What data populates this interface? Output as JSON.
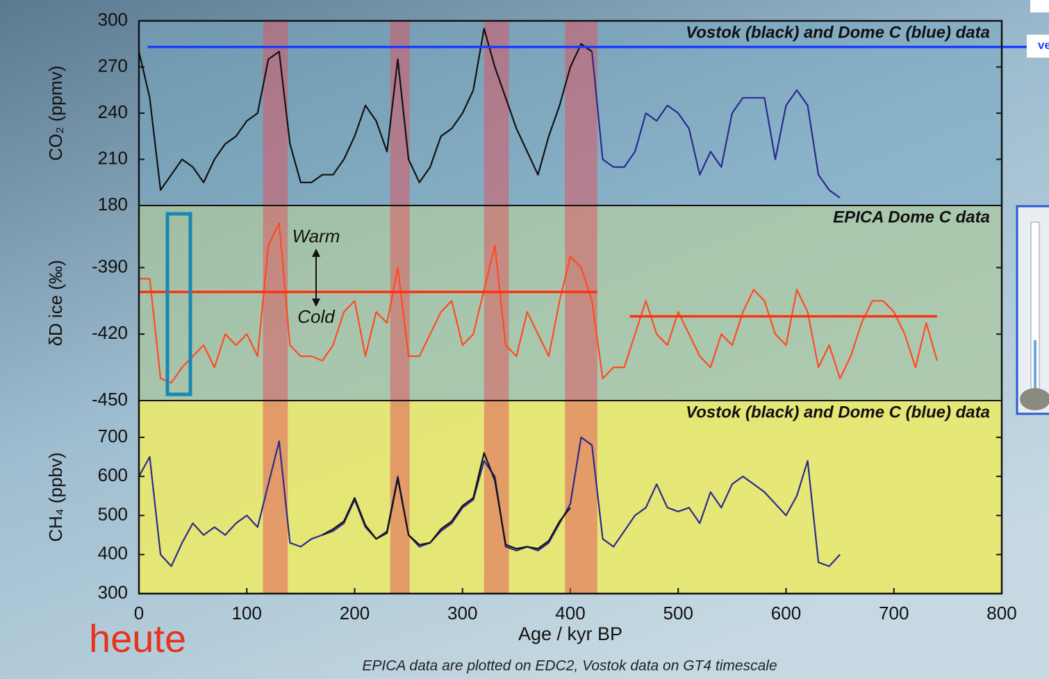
{
  "chart_data": [
    {
      "type": "line",
      "title": "Vostok (black) and Dome C (blue) data",
      "ylabel": "CO₂ (ppmv)",
      "xlim": [
        0,
        800
      ],
      "ylim": [
        180,
        300
      ],
      "yticks": [
        180,
        210,
        240,
        270,
        300
      ],
      "x": [
        0,
        10,
        20,
        30,
        40,
        50,
        60,
        70,
        80,
        90,
        100,
        110,
        120,
        130,
        140,
        150,
        160,
        170,
        180,
        190,
        200,
        210,
        220,
        230,
        240,
        250,
        260,
        270,
        280,
        290,
        300,
        310,
        320,
        330,
        340,
        350,
        360,
        370,
        380,
        390,
        400,
        410,
        420,
        430,
        440,
        450,
        460,
        470,
        480,
        490,
        500,
        510,
        520,
        530,
        540,
        550,
        560,
        570,
        580,
        590,
        600,
        610,
        620,
        630,
        640,
        650
      ],
      "series": [
        {
          "name": "Vostok",
          "color": "#111111",
          "values": [
            280,
            250,
            190,
            200,
            210,
            205,
            195,
            210,
            220,
            225,
            235,
            240,
            275,
            280,
            220,
            195,
            195,
            200,
            200,
            210,
            225,
            245,
            235,
            215,
            275,
            210,
            195,
            205,
            225,
            230,
            240,
            255,
            295,
            270,
            250,
            230,
            215,
            200,
            225,
            245,
            270,
            285,
            280,
            null,
            null,
            null,
            null,
            null,
            null,
            null,
            null,
            null,
            null,
            null,
            null,
            null,
            null,
            null,
            null,
            null,
            null,
            null,
            null,
            null,
            null,
            null
          ]
        },
        {
          "name": "Dome C",
          "color": "#2c2a8c",
          "values": [
            null,
            null,
            null,
            null,
            null,
            null,
            null,
            null,
            null,
            null,
            null,
            null,
            null,
            null,
            null,
            null,
            null,
            null,
            null,
            null,
            null,
            null,
            null,
            null,
            null,
            null,
            null,
            null,
            null,
            null,
            null,
            null,
            null,
            null,
            null,
            null,
            null,
            null,
            null,
            null,
            null,
            null,
            280,
            210,
            205,
            205,
            215,
            240,
            235,
            245,
            240,
            230,
            200,
            215,
            205,
            240,
            250,
            250,
            250,
            210,
            245,
            255,
            245,
            200,
            190,
            185
          ]
        }
      ],
      "shaded_ranges": [
        [
          115,
          138
        ],
        [
          233,
          251
        ],
        [
          320,
          343
        ],
        [
          395,
          425
        ]
      ],
      "shade_color": "rgba(225,80,90,0.5)",
      "reference_lines": [
        {
          "value": 283,
          "x": [
            8,
            823
          ],
          "color": "#1a3cff"
        }
      ]
    },
    {
      "type": "line",
      "title": "EPICA Dome C data",
      "ylabel": "δD ice (‰)",
      "xlim": [
        0,
        800
      ],
      "ylim": [
        -450,
        -362
      ],
      "yticks": [
        -450,
        -420,
        -390
      ],
      "annotations": [
        "Warm",
        "Cold"
      ],
      "x": [
        0,
        10,
        20,
        30,
        40,
        50,
        60,
        70,
        80,
        90,
        100,
        110,
        120,
        130,
        140,
        150,
        160,
        170,
        180,
        190,
        200,
        210,
        220,
        230,
        240,
        250,
        260,
        270,
        280,
        290,
        300,
        310,
        320,
        330,
        340,
        350,
        360,
        370,
        380,
        390,
        400,
        410,
        420,
        430,
        440,
        450,
        460,
        470,
        480,
        490,
        500,
        510,
        520,
        530,
        540,
        550,
        560,
        570,
        580,
        590,
        600,
        610,
        620,
        630,
        640,
        650,
        660,
        670,
        680,
        690,
        700,
        710,
        720,
        730,
        740
      ],
      "series": [
        {
          "name": "EPICA Dome C",
          "color": "#ff4a22",
          "values": [
            -395,
            -395,
            -440,
            -442,
            -435,
            -430,
            -425,
            -435,
            -420,
            -425,
            -420,
            -430,
            -380,
            -370,
            -425,
            -430,
            -430,
            -432,
            -425,
            -410,
            -405,
            -430,
            -410,
            -415,
            -390,
            -430,
            -430,
            -420,
            -410,
            -405,
            -425,
            -420,
            -400,
            -380,
            -425,
            -430,
            -410,
            -420,
            -430,
            -405,
            -385,
            -390,
            -405,
            -440,
            -435,
            -435,
            -420,
            -405,
            -420,
            -425,
            -410,
            -420,
            -430,
            -435,
            -420,
            -425,
            -410,
            -400,
            -405,
            -420,
            -425,
            -400,
            -410,
            -435,
            -425,
            -440,
            -430,
            -415,
            -405,
            -405,
            -410,
            -420,
            -435,
            -415,
            -432
          ]
        }
      ],
      "reference_lines": [
        {
          "value": -401,
          "x": [
            0,
            425
          ],
          "color": "#ff3010"
        },
        {
          "value": -412,
          "x": [
            455,
            740
          ],
          "color": "#ff3010"
        }
      ]
    },
    {
      "type": "line",
      "title": "Vostok (black) and Dome C (blue) data",
      "ylabel": "CH₄ (ppbv)",
      "xlabel": "Age / kyr BP",
      "xlim": [
        0,
        800
      ],
      "xticks": [
        0,
        100,
        200,
        300,
        400,
        500,
        600,
        700,
        800
      ],
      "ylim": [
        300,
        794
      ],
      "yticks": [
        300,
        400,
        500,
        600,
        700
      ],
      "x": [
        0,
        10,
        20,
        30,
        40,
        50,
        60,
        70,
        80,
        90,
        100,
        110,
        120,
        130,
        140,
        150,
        160,
        170,
        180,
        190,
        200,
        210,
        220,
        230,
        240,
        250,
        260,
        270,
        280,
        290,
        300,
        310,
        320,
        330,
        340,
        350,
        360,
        370,
        380,
        390,
        400,
        410,
        420,
        430,
        440,
        450,
        460,
        470,
        480,
        490,
        500,
        510,
        520,
        530,
        540,
        550,
        560,
        570,
        580,
        590,
        600,
        610,
        620,
        630,
        640,
        650
      ],
      "series": [
        {
          "name": "Dome C",
          "color": "#2c2a8c",
          "values": [
            600,
            650,
            400,
            370,
            430,
            480,
            450,
            470,
            450,
            480,
            500,
            470,
            580,
            690,
            430,
            420,
            440,
            450,
            460,
            480,
            540,
            470,
            440,
            460,
            600,
            450,
            420,
            430,
            460,
            480,
            520,
            540,
            640,
            600,
            420,
            410,
            420,
            410,
            430,
            480,
            530,
            700,
            680,
            440,
            420,
            460,
            500,
            520,
            580,
            520,
            510,
            520,
            480,
            560,
            520,
            580,
            600,
            580,
            560,
            530,
            500,
            550,
            640,
            380,
            370,
            400
          ]
        },
        {
          "name": "Vostok",
          "color": "#111111",
          "values": [
            null,
            null,
            null,
            null,
            null,
            null,
            null,
            null,
            null,
            null,
            null,
            null,
            null,
            null,
            null,
            null,
            null,
            450,
            465,
            485,
            545,
            475,
            440,
            455,
            595,
            450,
            425,
            430,
            465,
            485,
            525,
            545,
            660,
            590,
            425,
            415,
            420,
            415,
            435,
            485,
            520,
            null,
            null,
            null,
            null,
            null,
            null,
            null,
            null,
            null,
            null,
            null,
            null,
            null,
            null,
            null,
            null,
            null,
            null,
            null,
            null,
            null,
            null,
            null,
            null,
            null
          ]
        }
      ]
    }
  ],
  "slide": {
    "caption": "heute",
    "footnote": "EPICA data are plotted on EDC2, Vostok data on GT4 timescale",
    "corner_label": "ve"
  }
}
